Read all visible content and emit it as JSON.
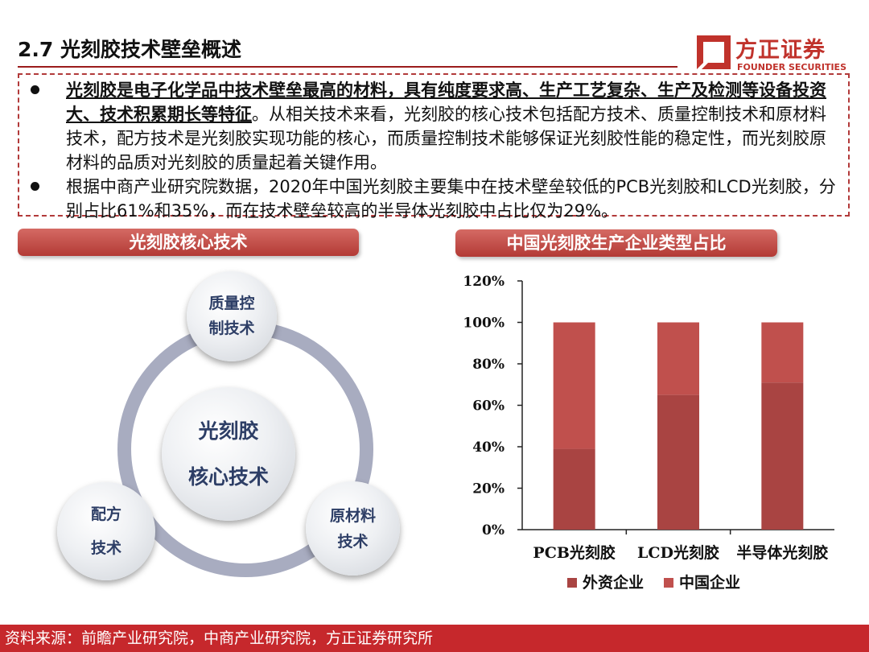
{
  "header": {
    "title": "2.7 光刻胶技术壁垒概述"
  },
  "logo": {
    "name_cn": "方正证券",
    "name_en": "FOUNDER SECURITIES"
  },
  "colors": {
    "accent": "#c0322b",
    "series_foreign": "#a94442",
    "series_china": "#c0504d"
  },
  "bullets": [
    {
      "bold": "光刻胶是电子化学品中技术壁垒最高的材料，具有纯度要求高、生产工艺复杂、生产及检测等设备投资大、技术积累期长等特征",
      "rest": "。从相关技术来看，光刻胶的核心技术包括配方技术、质量控制技术和原材料技术，配方技术是光刻胶实现功能的核心，而质量控制技术能够保证光刻胶性能的稳定性，而光刻胶原材料的品质对光刻胶的质量起着关键作用。"
    },
    {
      "text": "根据中商产业研究院数据，2020年中国光刻胶主要集中在技术壁垒较低的PCB光刻胶和LCD光刻胶，分别占比61%和35%，而在技术壁垒较高的半导体光刻胶中占比仅为29%。"
    }
  ],
  "left_panel": {
    "title": "光刻胶核心技术",
    "center_line1": "光刻胶",
    "center_line2": "核心技术",
    "top_line1": "质量控",
    "top_line2": "制技术",
    "left_line1": "配方",
    "left_line2": "技术",
    "right_line1": "原材料",
    "right_line2": "技术"
  },
  "right_panel": {
    "title": "中国光刻胶生产企业类型占比"
  },
  "chart_data": {
    "type": "bar",
    "stacked": true,
    "categories": [
      "PCB光刻胶",
      "LCD光刻胶",
      "半导体光刻胶"
    ],
    "series": [
      {
        "name": "外资企业",
        "values": [
          39,
          65,
          71
        ],
        "color": "#a94442"
      },
      {
        "name": "中国企业",
        "values": [
          61,
          35,
          29
        ],
        "color": "#c0504d"
      }
    ],
    "yticks": [
      "0%",
      "20%",
      "40%",
      "60%",
      "80%",
      "100%",
      "120%"
    ],
    "ylim": [
      0,
      120
    ],
    "grid": false,
    "legend": "bottom"
  },
  "footer": {
    "source": "资料来源：前瞻产业研究院，中商产业研究院，方正证券研究所"
  }
}
